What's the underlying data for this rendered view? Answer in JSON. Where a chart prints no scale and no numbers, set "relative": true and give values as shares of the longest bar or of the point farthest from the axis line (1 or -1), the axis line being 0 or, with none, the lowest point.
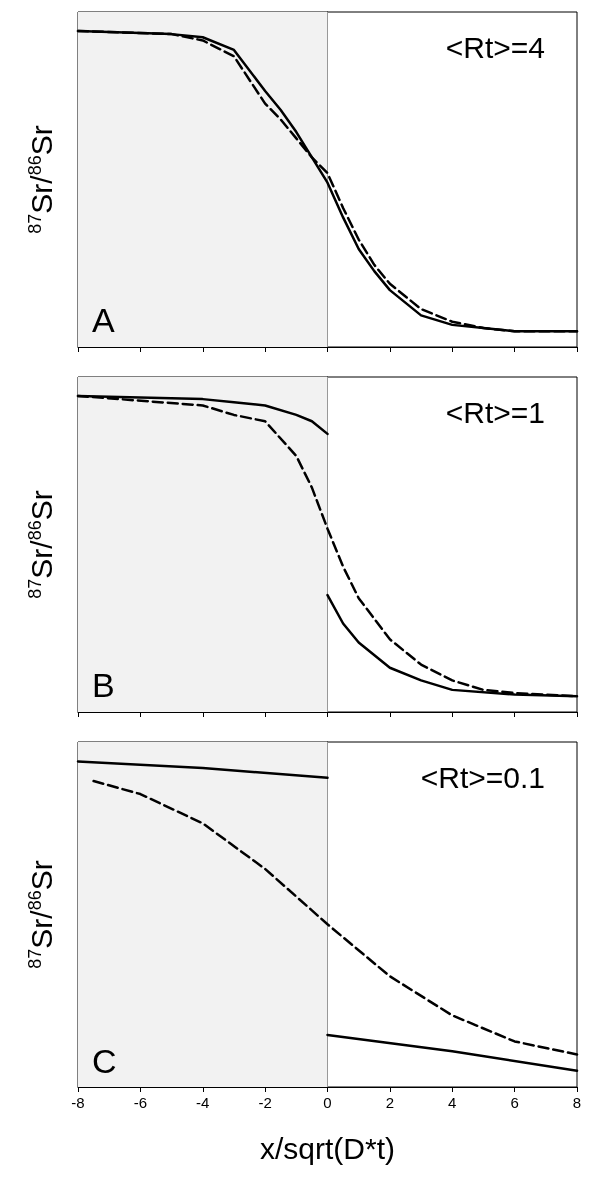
{
  "chart_data": [
    {
      "type": "line",
      "relative": true,
      "ylabel": "$^{87}$Sr/$^{86}$Sr",
      "annotations": [
        "A",
        "<Rt>=4"
      ],
      "xlim": [
        -8,
        8
      ],
      "xticks": [
        -8,
        -6,
        -4,
        -2,
        0,
        2,
        4,
        6,
        8
      ],
      "tick_labels": false,
      "marker": "none",
      "grid": false,
      "bands": [
        {
          "axis": "x",
          "from": -8,
          "to": 0,
          "color": "#f2f2f2"
        }
      ],
      "ref_lines": [
        {
          "axis": "x",
          "value": 0,
          "color": "#999999"
        }
      ],
      "series": [
        {
          "color": "#000000",
          "line_style": "solid",
          "x": [
            -8,
            -5,
            -4,
            -3,
            -2,
            -1.5,
            -1,
            -0.5,
            0,
            0.5,
            1,
            1.5,
            2,
            3,
            4,
            5,
            6,
            8
          ],
          "values": [
            1,
            0.99,
            0.98,
            0.94,
            0.81,
            0.75,
            0.68,
            0.6,
            0.52,
            0.41,
            0.31,
            0.24,
            0.18,
            0.1,
            0.07,
            0.06,
            0.05,
            0.05
          ]
        },
        {
          "color": "#000000",
          "line_style": "dashed",
          "x": [
            -8,
            -5,
            -4,
            -3,
            -2,
            -1.5,
            -1,
            -0.5,
            0,
            0.5,
            1,
            1.5,
            2,
            3,
            4,
            5,
            6,
            8
          ],
          "values": [
            1,
            0.99,
            0.97,
            0.92,
            0.77,
            0.72,
            0.66,
            0.6,
            0.55,
            0.44,
            0.34,
            0.26,
            0.2,
            0.12,
            0.08,
            0.06,
            0.05,
            0.05
          ]
        }
      ]
    },
    {
      "type": "line",
      "relative": true,
      "ylabel": "$^{87}$Sr/$^{86}$Sr",
      "annotations": [
        "B",
        "<Rt>=1"
      ],
      "xlim": [
        -8,
        8
      ],
      "xticks": [
        -8,
        -6,
        -4,
        -2,
        0,
        2,
        4,
        6,
        8
      ],
      "tick_labels": false,
      "marker": "none",
      "grid": false,
      "bands": [
        {
          "axis": "x",
          "from": -8,
          "to": 0,
          "color": "#f2f2f2"
        }
      ],
      "ref_lines": [
        {
          "axis": "x",
          "value": 0,
          "color": "#999999"
        }
      ],
      "series": [
        {
          "color": "#000000",
          "line_style": "solid",
          "x": [
            -8,
            -4,
            -3,
            -2,
            -1,
            -0.5,
            0
          ],
          "values": [
            1,
            0.99,
            0.98,
            0.97,
            0.94,
            0.92,
            0.88
          ]
        },
        {
          "color": "#000000",
          "line_style": "solid",
          "x": [
            0,
            0.5,
            1,
            2,
            3,
            4,
            6,
            8
          ],
          "values": [
            0.37,
            0.28,
            0.22,
            0.14,
            0.1,
            0.07,
            0.055,
            0.05
          ]
        },
        {
          "color": "#000000",
          "line_style": "dashed",
          "x": [
            -8,
            -4,
            -3,
            -2,
            -1,
            -0.5,
            0,
            0.5,
            1,
            2,
            3,
            4,
            5,
            6,
            8
          ],
          "values": [
            1,
            0.97,
            0.94,
            0.92,
            0.81,
            0.71,
            0.58,
            0.46,
            0.36,
            0.23,
            0.15,
            0.1,
            0.07,
            0.06,
            0.05
          ]
        }
      ]
    },
    {
      "type": "line",
      "relative": true,
      "ylabel": "$^{87}$Sr/$^{86}$Sr",
      "xlabel": "x/sqrt(D*t)",
      "annotations": [
        "C",
        "<Rt>=0.1"
      ],
      "xlim": [
        -8,
        8
      ],
      "xticks": [
        -8,
        -6,
        -4,
        -2,
        0,
        2,
        4,
        6,
        8
      ],
      "tick_labels": "x",
      "marker": "none",
      "grid": false,
      "bands": [
        {
          "axis": "x",
          "from": -8,
          "to": 0,
          "color": "#f2f2f2"
        }
      ],
      "ref_lines": [
        {
          "axis": "x",
          "value": 0,
          "color": "#999999"
        }
      ],
      "series": [
        {
          "color": "#000000",
          "line_style": "solid",
          "x": [
            -8,
            -4,
            0
          ],
          "values": [
            1,
            0.98,
            0.95
          ]
        },
        {
          "color": "#000000",
          "line_style": "solid",
          "x": [
            0,
            4,
            8
          ],
          "values": [
            0.16,
            0.11,
            0.05
          ]
        },
        {
          "color": "#000000",
          "line_style": "dashed",
          "x": [
            -7.5,
            -6,
            -4,
            -2,
            0,
            2,
            4,
            6,
            8
          ],
          "values": [
            0.94,
            0.9,
            0.81,
            0.67,
            0.5,
            0.34,
            0.22,
            0.14,
            0.1
          ]
        }
      ]
    }
  ]
}
